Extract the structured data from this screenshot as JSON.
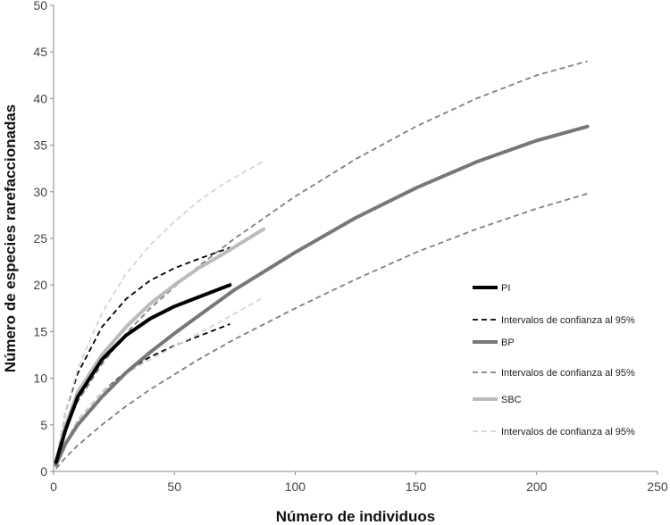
{
  "chart_data": {
    "type": "line",
    "title": "",
    "xlabel": "Número de individuos",
    "ylabel": "Número de especies rarefaccionadas",
    "xlim": [
      0,
      250
    ],
    "ylim": [
      0,
      50
    ],
    "xticks": [
      0,
      50,
      100,
      150,
      200,
      250
    ],
    "yticks": [
      0,
      5,
      10,
      15,
      20,
      25,
      30,
      35,
      40,
      45,
      50
    ],
    "grid": false,
    "legend_position": "right",
    "series": [
      {
        "name": "PI",
        "color": "#000000",
        "style": "solid",
        "width": "thick",
        "x": [
          1,
          5,
          10,
          20,
          30,
          40,
          50,
          60,
          73
        ],
        "y": [
          1,
          4.5,
          8,
          12,
          14.6,
          16.4,
          17.7,
          18.7,
          20
        ]
      },
      {
        "name": "Intervalos de confianza al 95%",
        "color": "#000000",
        "style": "dashed",
        "width": "thin",
        "x": [
          1,
          5,
          10,
          20,
          30,
          40,
          50,
          60,
          73
        ],
        "y": [
          1,
          6.5,
          10.5,
          15.5,
          18.5,
          20.5,
          21.8,
          22.8,
          24
        ]
      },
      {
        "name": "",
        "color": "#000000",
        "style": "dashed",
        "width": "thin",
        "x": [
          1,
          5,
          10,
          20,
          30,
          40,
          50,
          60,
          73
        ],
        "y": [
          0.5,
          3,
          5.5,
          8.5,
          10.7,
          12.3,
          13.5,
          14.5,
          15.8
        ]
      },
      {
        "name": "BP",
        "color": "#777777",
        "style": "solid",
        "width": "thick",
        "x": [
          1,
          5,
          10,
          20,
          30,
          40,
          50,
          60,
          75,
          100,
          125,
          150,
          175,
          200,
          221
        ],
        "y": [
          0.7,
          3,
          5,
          8,
          10.6,
          12.8,
          14.8,
          16.7,
          19.5,
          23.5,
          27.2,
          30.4,
          33.2,
          35.5,
          37
        ]
      },
      {
        "name": "Intervalos de confianza al 95%",
        "color": "#7f7f7f",
        "style": "dashed",
        "width": "thin",
        "x": [
          1,
          5,
          10,
          20,
          30,
          40,
          50,
          60,
          75,
          100,
          125,
          150,
          175,
          200,
          221
        ],
        "y": [
          1,
          4.5,
          7.5,
          11.5,
          14.8,
          17.5,
          19.8,
          22,
          25,
          29.5,
          33.5,
          37,
          40,
          42.5,
          44
        ]
      },
      {
        "name": "",
        "color": "#7f7f7f",
        "style": "dashed",
        "width": "thin",
        "x": [
          1,
          5,
          10,
          20,
          30,
          40,
          50,
          60,
          75,
          100,
          125,
          150,
          175,
          200,
          221
        ],
        "y": [
          0.3,
          1.5,
          2.8,
          5,
          7,
          8.8,
          10.4,
          12,
          14.2,
          17.5,
          20.6,
          23.5,
          26,
          28.2,
          29.8
        ]
      },
      {
        "name": "SBC",
        "color": "#bbbbbb",
        "style": "solid",
        "width": "thick",
        "x": [
          1,
          5,
          10,
          20,
          30,
          40,
          50,
          60,
          70,
          87
        ],
        "y": [
          1,
          5,
          8.5,
          12.5,
          15.5,
          18,
          20,
          21.8,
          23.3,
          26
        ]
      },
      {
        "name": "Intervalos de confianza al 95%",
        "color": "#d4d4d4",
        "style": "dashed",
        "width": "thin",
        "x": [
          1,
          5,
          10,
          20,
          30,
          40,
          50,
          60,
          70,
          87
        ],
        "y": [
          1,
          6.5,
          11,
          17,
          21.2,
          24.3,
          26.8,
          29,
          30.8,
          33.3
        ]
      },
      {
        "name": "",
        "color": "#d4d4d4",
        "style": "dashed",
        "width": "thin",
        "x": [
          1,
          5,
          10,
          20,
          30,
          40,
          50,
          60,
          70,
          87
        ],
        "y": [
          0.5,
          3,
          5.5,
          8.5,
          10.5,
          12,
          13.4,
          14.8,
          16.2,
          18.7
        ]
      }
    ]
  }
}
